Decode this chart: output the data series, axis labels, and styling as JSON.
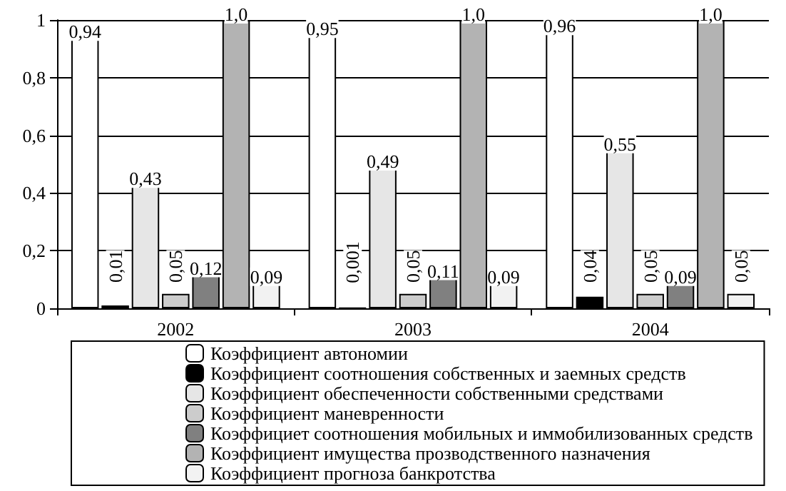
{
  "chart_data": {
    "type": "bar",
    "categories": [
      "2002",
      "2003",
      "2004"
    ],
    "ylim": [
      0,
      1
    ],
    "yticks": [
      0,
      {
        "value": 0.2,
        "label": "0,2"
      },
      {
        "value": 0.4,
        "label": "0,4"
      },
      {
        "value": 0.6,
        "label": "0,6"
      },
      {
        "value": 0.8,
        "label": "0,8"
      },
      1
    ],
    "grid": "y",
    "legend": "bottom",
    "series": [
      {
        "name": "Коэффициент автономии",
        "color": "#ffffff",
        "values": [
          0.94,
          0.95,
          0.96
        ],
        "value_labels": [
          "0,94",
          "0,95",
          "0,96"
        ]
      },
      {
        "name": "Коэффициент соотношения собственных и заемных средств",
        "color": "#000000",
        "values": [
          0.01,
          0.001,
          0.04
        ],
        "value_labels": [
          "0,01",
          "0,001",
          "0,04"
        ]
      },
      {
        "name": "Коэффициент обеспеченности собственными средствами",
        "color": "#e6e6e6",
        "values": [
          0.43,
          0.49,
          0.55
        ],
        "value_labels": [
          "0,43",
          "0,49",
          "0,55"
        ]
      },
      {
        "name": "Коэффициент маневренности",
        "color": "#cccccc",
        "values": [
          0.05,
          0.05,
          0.05
        ],
        "value_labels": [
          "0,05",
          "0,05",
          "0,05"
        ]
      },
      {
        "name": "Коэффициет соотношения мобильных и иммобилизованных средств",
        "color": "#808080",
        "values": [
          0.12,
          0.11,
          0.09
        ],
        "value_labels": [
          "0,12",
          "0,11",
          "0,09"
        ]
      },
      {
        "name": "Коэффициент имущества прозводственного назначения",
        "color": "#b3b3b3",
        "values": [
          1.0,
          1.0,
          1.0
        ],
        "value_labels": [
          "1,0",
          "1,0",
          "1,0"
        ]
      },
      {
        "name": "Коэффициент прогноза банкротства",
        "color": "#f2f2f2",
        "values": [
          0.09,
          0.09,
          0.05
        ],
        "value_labels": [
          "0,09",
          "0,09",
          "0,05"
        ]
      }
    ]
  }
}
